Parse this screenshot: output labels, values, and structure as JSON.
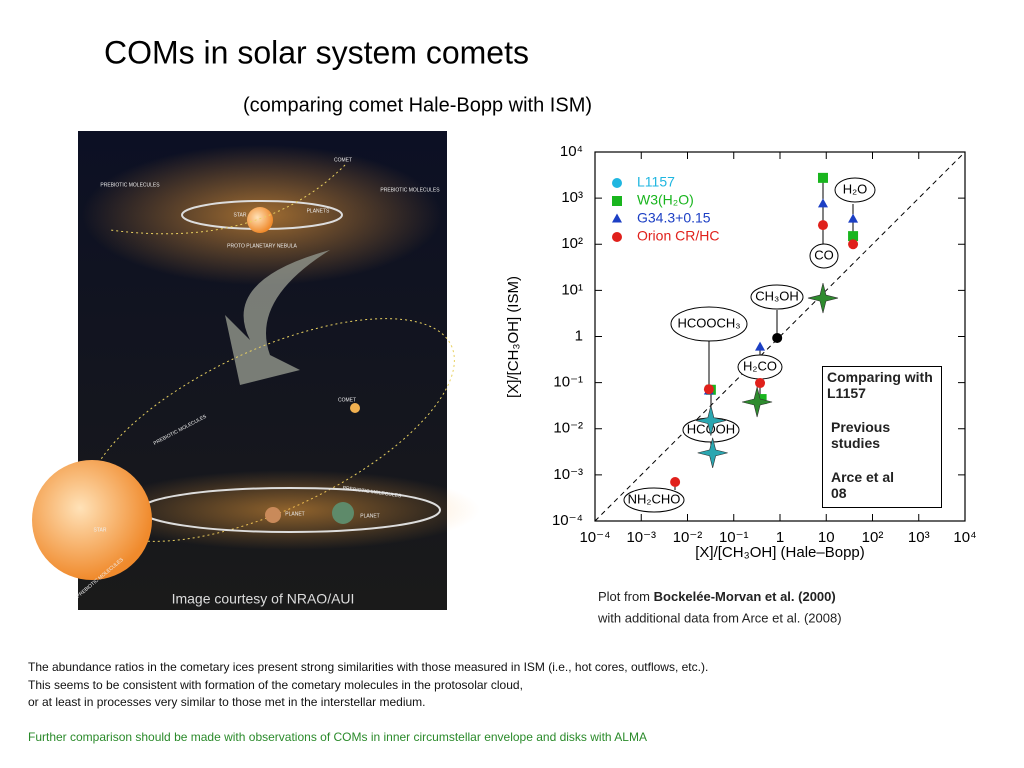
{
  "header": {
    "title": "COMs in solar system comets",
    "subtitle": "(comparing comet Hale-Bopp with ISM)"
  },
  "image": {
    "labels": [
      "COMET",
      "PREBIOTIC MOLECULES",
      "PREBIOTIC MOLECULES",
      "STAR",
      "PLANETS",
      "PROTO PLANETARY NEBULA",
      "PREBIOTIC MOLECULES",
      "COMET",
      "PREBIOTIC MOLECULES",
      "STAR",
      "PLANET",
      "PLANET",
      "PREBIOTIC MOLECULES"
    ],
    "credit": "Image courtesy of NRAO/AUI"
  },
  "chart_data": {
    "type": "scatter",
    "log_x": true,
    "log_y": true,
    "xlabel": "[X]/[CH₃OH] (Hale–Bopp)",
    "ylabel": "[X]/[CH₃OH] (ISM)",
    "xlim": [
      0.0001,
      10000
    ],
    "ylim": [
      0.0001,
      10000
    ],
    "xticks": [
      {
        "value": 0.0001,
        "label": "10⁻⁴"
      },
      {
        "value": 0.001,
        "label": "10⁻³"
      },
      {
        "value": 0.01,
        "label": "10⁻²"
      },
      {
        "value": 0.1,
        "label": "10⁻¹"
      },
      1,
      10,
      {
        "value": 100,
        "label": "10²"
      },
      {
        "value": 1000,
        "label": "10³"
      },
      {
        "value": 10000,
        "label": "10⁴"
      }
    ],
    "yticks": [
      {
        "value": 0.0001,
        "label": "10⁻⁴"
      },
      {
        "value": 0.001,
        "label": "10⁻³"
      },
      {
        "value": 0.01,
        "label": "10⁻²"
      },
      {
        "value": 0.1,
        "label": "10⁻¹"
      },
      1,
      {
        "value": 10,
        "label": "10¹"
      },
      {
        "value": 100,
        "label": "10²"
      },
      {
        "value": 1000,
        "label": "10³"
      },
      {
        "value": 10000,
        "label": "10⁴"
      }
    ],
    "legend": "upper left",
    "series": [
      {
        "name": "L1157",
        "color": "#1fb6e0",
        "marker": "circle",
        "legend": "main",
        "x": [],
        "values": []
      },
      {
        "name": "W3(H₂O)",
        "color": "#19b51e",
        "marker": "square",
        "legend": "main",
        "x": [
          8.5,
          38,
          0.032,
          0.4
        ],
        "values": [
          2750,
          150,
          0.07,
          0.044
        ]
      },
      {
        "name": "G34.3+0.15",
        "color": "#1c3fc4",
        "marker": "triangle",
        "legend": "main",
        "x": [
          8.5,
          38,
          0.37,
          0.029
        ],
        "values": [
          750,
          350,
          0.59,
          0.066
        ]
      },
      {
        "name": "Orion CR/HC",
        "color": "#e0201b",
        "marker": "circle",
        "legend": "main",
        "x": [
          8.5,
          38,
          0.029,
          0.37,
          0.0054
        ],
        "values": [
          260,
          100,
          0.072,
          0.098,
          0.0007
        ]
      },
      {
        "color": "#000000",
        "marker": "circle",
        "x": [
          0.87
        ],
        "values": [
          0.93
        ]
      },
      {
        "name": "Previous studies",
        "color": "#2e8b2e",
        "marker": "star",
        "legend": "inset",
        "x": [
          8.5,
          0.32
        ],
        "values": [
          6.8,
          0.038
        ]
      },
      {
        "name": "Arce et al 08",
        "color": "#2aa6b0",
        "marker": "star",
        "legend": "inset",
        "x": [
          0.032,
          0.035
        ],
        "values": [
          0.015,
          0.003
        ]
      }
    ],
    "inset_legend_title": "Comparing with L1157",
    "molecules": [
      "H₂O",
      "CO",
      "CH₃OH",
      "HCOOCH₃",
      "H₂CO",
      "HCOOH",
      "NH₂CHO"
    ]
  },
  "captions": {
    "plot_prefix": "Plot from",
    "plot_source": "Bockelée-Morvan et al. (2000)",
    "plot_line2": "with additional data from Arce et al. (2008)"
  },
  "body": {
    "lines": [
      "The abundance ratios in the cometary ices present strong similarities with those measured in ISM (i.e., hot cores, outflows, etc.).",
      "This seems to be consistent with formation of the cometary molecules in the protosolar cloud,",
      "or at least in processes very similar to those met in the interstellar medium."
    ],
    "note": "Further comparison should be made with observations of COMs in inner circumstellar envelope and disks with ALMA"
  }
}
